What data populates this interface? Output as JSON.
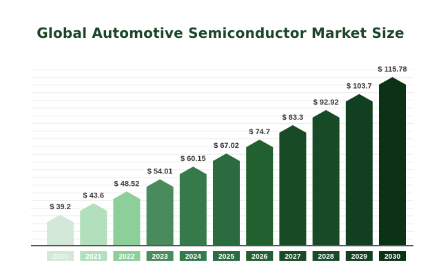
{
  "chart_data": {
    "type": "bar",
    "title": "Global Automotive Semiconductor Market Size",
    "categories": [
      "2020",
      "2021",
      "2022",
      "2023",
      "2024",
      "2025",
      "2026",
      "2027",
      "2028",
      "2029",
      "2030"
    ],
    "values": [
      39.2,
      43.6,
      48.52,
      54.01,
      60.15,
      67.02,
      74.7,
      83.3,
      92.92,
      103.7,
      115.78
    ],
    "data_labels": [
      "$ 39.2",
      "$ 43.6",
      "$ 48.52",
      "$ 54.01",
      "$ 60.15",
      "$ 67.02",
      "$ 74.7",
      "$ 83.3",
      "$ 92.92",
      "$ 103.7",
      "$ 115.78"
    ],
    "colors": [
      "#d4e8da",
      "#b2dfbc",
      "#8ccf99",
      "#4a8b5d",
      "#367a4c",
      "#2a6c40",
      "#23602f",
      "#174a25",
      "#184a27",
      "#123f1f",
      "#0b3215"
    ],
    "grid": true,
    "legend": "none"
  }
}
